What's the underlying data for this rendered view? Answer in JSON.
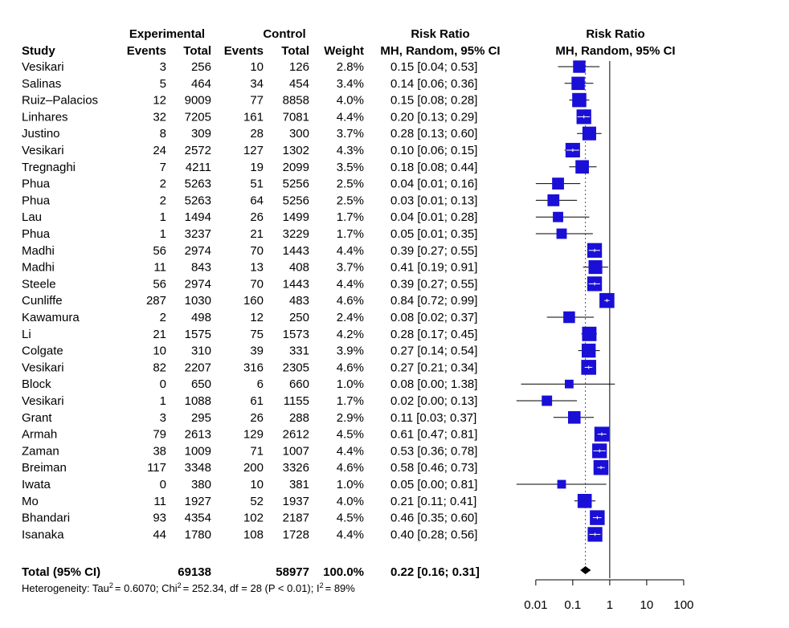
{
  "chart_data": {
    "type": "forest",
    "title": "",
    "headers": {
      "study": "Study",
      "experimental": "Experimental",
      "control": "Control",
      "events": "Events",
      "total": "Total",
      "weight": "Weight",
      "risk_ratio": "Risk Ratio",
      "method": "MH, Random, 95% CI"
    },
    "studies": [
      {
        "study": "Vesikari",
        "e_events": "3",
        "e_total": "256",
        "c_events": "10",
        "c_total": "126",
        "weight": "2.8%",
        "ci_text": "0.15 [0.04; 0.53]",
        "rr": 0.15,
        "lo": 0.04,
        "hi": 0.53,
        "w": 2.8
      },
      {
        "study": "Salinas",
        "e_events": "5",
        "e_total": "464",
        "c_events": "34",
        "c_total": "454",
        "weight": "3.4%",
        "ci_text": "0.14 [0.06; 0.36]",
        "rr": 0.14,
        "lo": 0.06,
        "hi": 0.36,
        "w": 3.4
      },
      {
        "study": "Ruiz–Palacios",
        "e_events": "12",
        "e_total": "9009",
        "c_events": "77",
        "c_total": "8858",
        "weight": "4.0%",
        "ci_text": "0.15 [0.08; 0.28]",
        "rr": 0.15,
        "lo": 0.08,
        "hi": 0.28,
        "w": 4.0
      },
      {
        "study": "Linhares",
        "e_events": "32",
        "e_total": "7205",
        "c_events": "161",
        "c_total": "7081",
        "weight": "4.4%",
        "ci_text": "0.20 [0.13; 0.29]",
        "rr": 0.2,
        "lo": 0.13,
        "hi": 0.29,
        "w": 4.4
      },
      {
        "study": "Justino",
        "e_events": "8",
        "e_total": "309",
        "c_events": "28",
        "c_total": "300",
        "weight": "3.7%",
        "ci_text": "0.28 [0.13; 0.60]",
        "rr": 0.28,
        "lo": 0.13,
        "hi": 0.6,
        "w": 3.7
      },
      {
        "study": "Vesikari",
        "e_events": "24",
        "e_total": "2572",
        "c_events": "127",
        "c_total": "1302",
        "weight": "4.3%",
        "ci_text": "0.10 [0.06; 0.15]",
        "rr": 0.1,
        "lo": 0.06,
        "hi": 0.15,
        "w": 4.3
      },
      {
        "study": "Tregnaghi",
        "e_events": "7",
        "e_total": "4211",
        "c_events": "19",
        "c_total": "2099",
        "weight": "3.5%",
        "ci_text": "0.18 [0.08; 0.44]",
        "rr": 0.18,
        "lo": 0.08,
        "hi": 0.44,
        "w": 3.5
      },
      {
        "study": "Phua",
        "e_events": "2",
        "e_total": "5263",
        "c_events": "51",
        "c_total": "5256",
        "weight": "2.5%",
        "ci_text": "0.04 [0.01; 0.16]",
        "rr": 0.04,
        "lo": 0.01,
        "hi": 0.16,
        "w": 2.5
      },
      {
        "study": "Phua",
        "e_events": "2",
        "e_total": "5263",
        "c_events": "64",
        "c_total": "5256",
        "weight": "2.5%",
        "ci_text": "0.03 [0.01; 0.13]",
        "rr": 0.03,
        "lo": 0.01,
        "hi": 0.13,
        "w": 2.5
      },
      {
        "study": "Lau",
        "e_events": "1",
        "e_total": "1494",
        "c_events": "26",
        "c_total": "1499",
        "weight": "1.7%",
        "ci_text": "0.04 [0.01; 0.28]",
        "rr": 0.04,
        "lo": 0.01,
        "hi": 0.28,
        "w": 1.7
      },
      {
        "study": "Phua",
        "e_events": "1",
        "e_total": "3237",
        "c_events": "21",
        "c_total": "3229",
        "weight": "1.7%",
        "ci_text": "0.05 [0.01; 0.35]",
        "rr": 0.05,
        "lo": 0.01,
        "hi": 0.35,
        "w": 1.7
      },
      {
        "study": "Madhi",
        "e_events": "56",
        "e_total": "2974",
        "c_events": "70",
        "c_total": "1443",
        "weight": "4.4%",
        "ci_text": "0.39 [0.27; 0.55]",
        "rr": 0.39,
        "lo": 0.27,
        "hi": 0.55,
        "w": 4.4
      },
      {
        "study": "Madhi",
        "e_events": "11",
        "e_total": "843",
        "c_events": "13",
        "c_total": "408",
        "weight": "3.7%",
        "ci_text": "0.41 [0.19; 0.91]",
        "rr": 0.41,
        "lo": 0.19,
        "hi": 0.91,
        "w": 3.7
      },
      {
        "study": "Steele",
        "e_events": "56",
        "e_total": "2974",
        "c_events": "70",
        "c_total": "1443",
        "weight": "4.4%",
        "ci_text": "0.39 [0.27; 0.55]",
        "rr": 0.39,
        "lo": 0.27,
        "hi": 0.55,
        "w": 4.4
      },
      {
        "study": "Cunliffe",
        "e_events": "287",
        "e_total": "1030",
        "c_events": "160",
        "c_total": "483",
        "weight": "4.6%",
        "ci_text": "0.84 [0.72; 0.99]",
        "rr": 0.84,
        "lo": 0.72,
        "hi": 0.99,
        "w": 4.6
      },
      {
        "study": "Kawamura",
        "e_events": "2",
        "e_total": "498",
        "c_events": "12",
        "c_total": "250",
        "weight": "2.4%",
        "ci_text": "0.08 [0.02; 0.37]",
        "rr": 0.08,
        "lo": 0.02,
        "hi": 0.37,
        "w": 2.4
      },
      {
        "study": "Li",
        "e_events": "21",
        "e_total": "1575",
        "c_events": "75",
        "c_total": "1573",
        "weight": "4.2%",
        "ci_text": "0.28 [0.17; 0.45]",
        "rr": 0.28,
        "lo": 0.17,
        "hi": 0.45,
        "w": 4.2
      },
      {
        "study": "Colgate",
        "e_events": "10",
        "e_total": "310",
        "c_events": "39",
        "c_total": "331",
        "weight": "3.9%",
        "ci_text": "0.27 [0.14; 0.54]",
        "rr": 0.27,
        "lo": 0.14,
        "hi": 0.54,
        "w": 3.9
      },
      {
        "study": "Vesikari",
        "e_events": "82",
        "e_total": "2207",
        "c_events": "316",
        "c_total": "2305",
        "weight": "4.6%",
        "ci_text": "0.27 [0.21; 0.34]",
        "rr": 0.27,
        "lo": 0.21,
        "hi": 0.34,
        "w": 4.6
      },
      {
        "study": "Block",
        "e_events": "0",
        "e_total": "650",
        "c_events": "6",
        "c_total": "660",
        "weight": "1.0%",
        "ci_text": "0.08 [0.00; 1.38]",
        "rr": 0.08,
        "lo": 0.004,
        "hi": 1.38,
        "w": 1.0
      },
      {
        "study": "Vesikari",
        "e_events": "1",
        "e_total": "1088",
        "c_events": "61",
        "c_total": "1155",
        "weight": "1.7%",
        "ci_text": "0.02 [0.00; 0.13]",
        "rr": 0.02,
        "lo": 0.003,
        "hi": 0.13,
        "w": 1.7
      },
      {
        "study": "Grant",
        "e_events": "3",
        "e_total": "295",
        "c_events": "26",
        "c_total": "288",
        "weight": "2.9%",
        "ci_text": "0.11 [0.03; 0.37]",
        "rr": 0.11,
        "lo": 0.03,
        "hi": 0.37,
        "w": 2.9
      },
      {
        "study": "Armah",
        "e_events": "79",
        "e_total": "2613",
        "c_events": "129",
        "c_total": "2612",
        "weight": "4.5%",
        "ci_text": "0.61 [0.47; 0.81]",
        "rr": 0.61,
        "lo": 0.47,
        "hi": 0.81,
        "w": 4.5
      },
      {
        "study": "Zaman",
        "e_events": "38",
        "e_total": "1009",
        "c_events": "71",
        "c_total": "1007",
        "weight": "4.4%",
        "ci_text": "0.53 [0.36; 0.78]",
        "rr": 0.53,
        "lo": 0.36,
        "hi": 0.78,
        "w": 4.4
      },
      {
        "study": "Breiman",
        "e_events": "117",
        "e_total": "3348",
        "c_events": "200",
        "c_total": "3326",
        "weight": "4.6%",
        "ci_text": "0.58 [0.46; 0.73]",
        "rr": 0.58,
        "lo": 0.46,
        "hi": 0.73,
        "w": 4.6
      },
      {
        "study": "Iwata",
        "e_events": "0",
        "e_total": "380",
        "c_events": "10",
        "c_total": "381",
        "weight": "1.0%",
        "ci_text": "0.05 [0.00; 0.81]",
        "rr": 0.05,
        "lo": 0.003,
        "hi": 0.81,
        "w": 1.0
      },
      {
        "study": "Mo",
        "e_events": "11",
        "e_total": "1927",
        "c_events": "52",
        "c_total": "1937",
        "weight": "4.0%",
        "ci_text": "0.21 [0.11; 0.41]",
        "rr": 0.21,
        "lo": 0.11,
        "hi": 0.41,
        "w": 4.0
      },
      {
        "study": "Bhandari",
        "e_events": "93",
        "e_total": "4354",
        "c_events": "102",
        "c_total": "2187",
        "weight": "4.5%",
        "ci_text": "0.46 [0.35; 0.60]",
        "rr": 0.46,
        "lo": 0.35,
        "hi": 0.6,
        "w": 4.5
      },
      {
        "study": "Isanaka",
        "e_events": "44",
        "e_total": "1780",
        "c_events": "108",
        "c_total": "1728",
        "weight": "4.4%",
        "ci_text": "0.40 [0.28; 0.56]",
        "rr": 0.4,
        "lo": 0.28,
        "hi": 0.56,
        "w": 4.4
      }
    ],
    "total": {
      "label": "Total (95% CI)",
      "e_total": "69138",
      "c_total": "58977",
      "weight": "100.0%",
      "ci_text": "0.22 [0.16; 0.31]",
      "rr": 0.22,
      "lo": 0.16,
      "hi": 0.31
    },
    "heterogeneity": {
      "prefix": "Heterogeneity: Tau",
      "tau2": "= 0.6070; Chi",
      "chi2": "= 252.34, df = 28 (P < 0.01); I",
      "i2": "= 89%",
      "sup": "2"
    },
    "x_axis": {
      "scale": "log",
      "ticks": [
        0.01,
        0.1,
        1,
        10,
        100
      ],
      "tick_labels": [
        "0.01",
        "0.1",
        "1",
        "10",
        "100"
      ],
      "reference_line": 1
    },
    "colors": {
      "square": "#1a0fd6",
      "diamond": "#000000"
    }
  }
}
